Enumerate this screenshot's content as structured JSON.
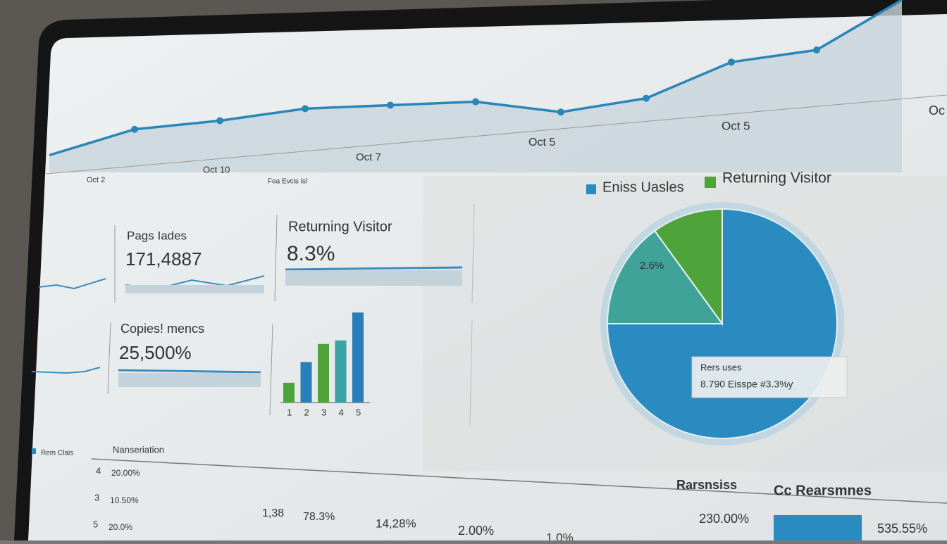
{
  "line_chart": {
    "values": [
      10,
      25,
      30,
      37,
      39,
      41,
      35,
      43,
      64,
      71,
      100
    ],
    "ylim": [
      0,
      100
    ],
    "color": "#2a86b8",
    "x_labels": [
      "Oct 2",
      "Oct 10",
      "Oct 7",
      "Oct 5",
      "Oct 5",
      "Oc"
    ],
    "caption": "Fea Evcis isl"
  },
  "cards": [
    {
      "label": "Pags Iades",
      "value": "171,4887"
    },
    {
      "label": "Returning Visitor",
      "value": "8.3%"
    },
    {
      "label": "Copies! mencs",
      "value": "25,500%"
    }
  ],
  "bar_chart": {
    "categories": [
      "1",
      "2",
      "3",
      "4",
      "5"
    ],
    "values": [
      22,
      45,
      65,
      69,
      100
    ],
    "ylim": [
      0,
      100
    ],
    "colors": [
      "#4ea33a",
      "#2a7fb8",
      "#4ea33a",
      "#3aa3a3",
      "#2a7fb8"
    ]
  },
  "pie": {
    "legend": [
      {
        "name": "Eniss Uasles",
        "color": "#2a8bc0"
      },
      {
        "name": "Returning Visitor",
        "color": "#4ea33a"
      }
    ],
    "values": [
      75,
      15,
      10
    ],
    "colors": [
      "#2a8bc0",
      "#3fa39a",
      "#4ea33a"
    ],
    "slice_label": "2.6%",
    "tooltip": {
      "title": "Rers uses",
      "text": "8.790 Eisspe #3.3%y"
    }
  },
  "table": {
    "legend": "Rem Clais",
    "header": "Nanseriation",
    "right_headers": [
      "Rarsnsiss",
      "Cc Rearsmnes"
    ],
    "rows": [
      [
        "4",
        "20.00%"
      ],
      [
        "3",
        "10.50%"
      ],
      [
        "5",
        "20.0%"
      ]
    ],
    "row_values": [
      "1,38",
      "78.3%",
      "14,28%",
      "2.00%",
      "1.0%"
    ],
    "right_values": [
      "230.00%",
      "535.55%"
    ]
  }
}
